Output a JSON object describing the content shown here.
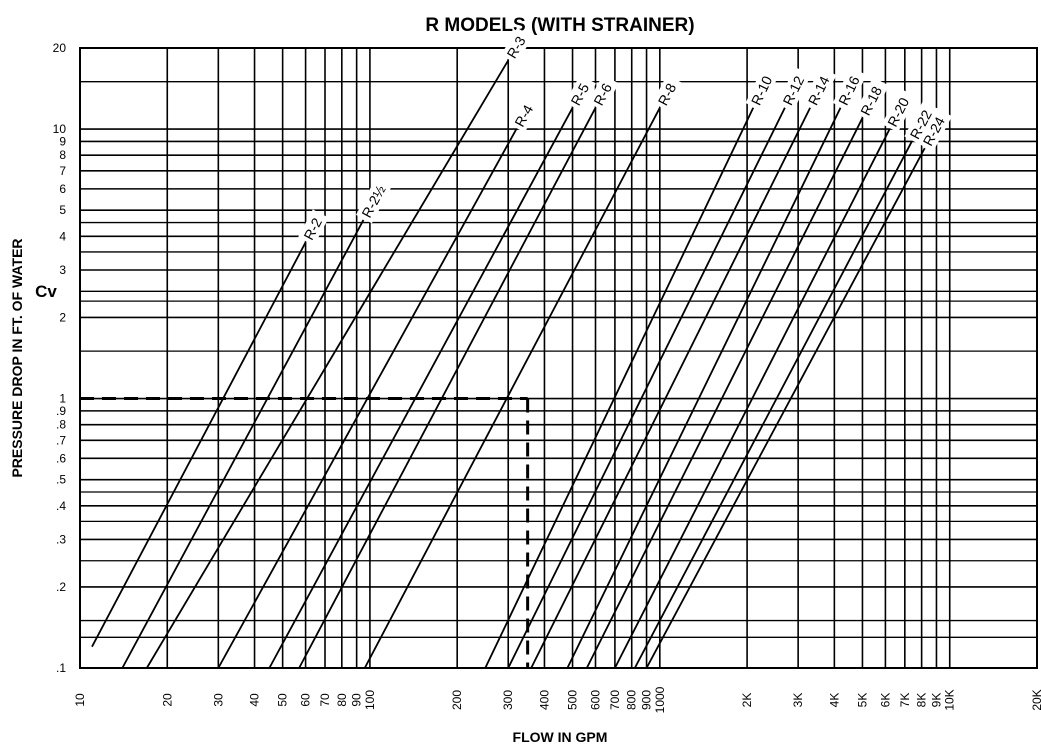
{
  "chart_data": {
    "type": "line",
    "title": "R MODELS (WITH STRAINER)",
    "xlabel": "FLOW IN GPM",
    "ylabel": "PRESSURE DROP IN FT. OF WATER",
    "ylabel_secondary": "Cv",
    "x_scale": "log",
    "y_scale": "log",
    "xlim": [
      10,
      20000
    ],
    "ylim": [
      0.1,
      20
    ],
    "grid": true,
    "x_ticks": [
      {
        "value": 10,
        "label": "10"
      },
      {
        "value": 20,
        "label": "20"
      },
      {
        "value": 30,
        "label": "30"
      },
      {
        "value": 40,
        "label": "40"
      },
      {
        "value": 50,
        "label": "50"
      },
      {
        "value": 60,
        "label": "60"
      },
      {
        "value": 70,
        "label": "70"
      },
      {
        "value": 80,
        "label": "80"
      },
      {
        "value": 90,
        "label": "90"
      },
      {
        "value": 100,
        "label": "100"
      },
      {
        "value": 200,
        "label": "200"
      },
      {
        "value": 300,
        "label": "300"
      },
      {
        "value": 400,
        "label": "400"
      },
      {
        "value": 500,
        "label": "500"
      },
      {
        "value": 600,
        "label": "600"
      },
      {
        "value": 700,
        "label": "700"
      },
      {
        "value": 800,
        "label": "800"
      },
      {
        "value": 900,
        "label": "900"
      },
      {
        "value": 1000,
        "label": "1000"
      },
      {
        "value": 2000,
        "label": "2K"
      },
      {
        "value": 3000,
        "label": "3K"
      },
      {
        "value": 4000,
        "label": "4K"
      },
      {
        "value": 5000,
        "label": "5K"
      },
      {
        "value": 6000,
        "label": "6K"
      },
      {
        "value": 7000,
        "label": "7K"
      },
      {
        "value": 8000,
        "label": "8K"
      },
      {
        "value": 9000,
        "label": "9K"
      },
      {
        "value": 10000,
        "label": "10K"
      },
      {
        "value": 20000,
        "label": "20K"
      }
    ],
    "y_ticks": [
      {
        "value": 0.1,
        "label": ".1"
      },
      {
        "value": 0.2,
        "label": ".2"
      },
      {
        "value": 0.3,
        "label": ".3"
      },
      {
        "value": 0.4,
        "label": ".4"
      },
      {
        "value": 0.5,
        "label": ".5"
      },
      {
        "value": 0.6,
        "label": ".6"
      },
      {
        "value": 0.7,
        "label": ".7"
      },
      {
        "value": 0.8,
        "label": ".8"
      },
      {
        "value": 0.9,
        "label": ".9"
      },
      {
        "value": 1,
        "label": "1"
      },
      {
        "value": 2,
        "label": "2"
      },
      {
        "value": 3,
        "label": "3"
      },
      {
        "value": 4,
        "label": "4"
      },
      {
        "value": 5,
        "label": "5"
      },
      {
        "value": 6,
        "label": "6"
      },
      {
        "value": 7,
        "label": "7"
      },
      {
        "value": 8,
        "label": "8"
      },
      {
        "value": 9,
        "label": "9"
      },
      {
        "value": 10,
        "label": "10"
      },
      {
        "value": 20,
        "label": "20"
      }
    ],
    "extra_y_gridlines": [
      0.13,
      0.15,
      0.25,
      0.35,
      0.45,
      1.5,
      2.3,
      2.5,
      3.5,
      4.5,
      15
    ],
    "reference_line": {
      "style": "dashed",
      "y": 1,
      "x_end": 350,
      "drop_x": 350
    },
    "series": [
      {
        "name": "R-2",
        "x": [
          11,
          60
        ],
        "y": [
          0.12,
          3.8
        ]
      },
      {
        "name": "R-2½",
        "x": [
          14,
          95
        ],
        "y": [
          0.1,
          4.6
        ]
      },
      {
        "name": "R-3",
        "x": [
          17,
          300
        ],
        "y": [
          0.1,
          18
        ]
      },
      {
        "name": "R-4",
        "x": [
          30,
          320
        ],
        "y": [
          0.1,
          10
        ]
      },
      {
        "name": "R-5",
        "x": [
          45,
          500
        ],
        "y": [
          0.1,
          12
        ]
      },
      {
        "name": "R-6",
        "x": [
          57,
          600
        ],
        "y": [
          0.1,
          12
        ]
      },
      {
        "name": "R-8",
        "x": [
          96,
          1000
        ],
        "y": [
          0.1,
          12
        ]
      },
      {
        "name": "R-10",
        "x": [
          250,
          2100
        ],
        "y": [
          0.1,
          12
        ]
      },
      {
        "name": "R-12",
        "x": [
          300,
          2700
        ],
        "y": [
          0.1,
          12
        ]
      },
      {
        "name": "R-14",
        "x": [
          360,
          3300
        ],
        "y": [
          0.1,
          12
        ]
      },
      {
        "name": "R-16",
        "x": [
          480,
          4200
        ],
        "y": [
          0.1,
          12
        ]
      },
      {
        "name": "R-18",
        "x": [
          560,
          5000
        ],
        "y": [
          0.1,
          11
        ]
      },
      {
        "name": "R-20",
        "x": [
          700,
          6200
        ],
        "y": [
          0.1,
          10
        ]
      },
      {
        "name": "R-22",
        "x": [
          820,
          7400
        ],
        "y": [
          0.1,
          9
        ]
      },
      {
        "name": "R-24",
        "x": [
          900,
          8200
        ],
        "y": [
          0.1,
          8.5
        ]
      }
    ]
  }
}
